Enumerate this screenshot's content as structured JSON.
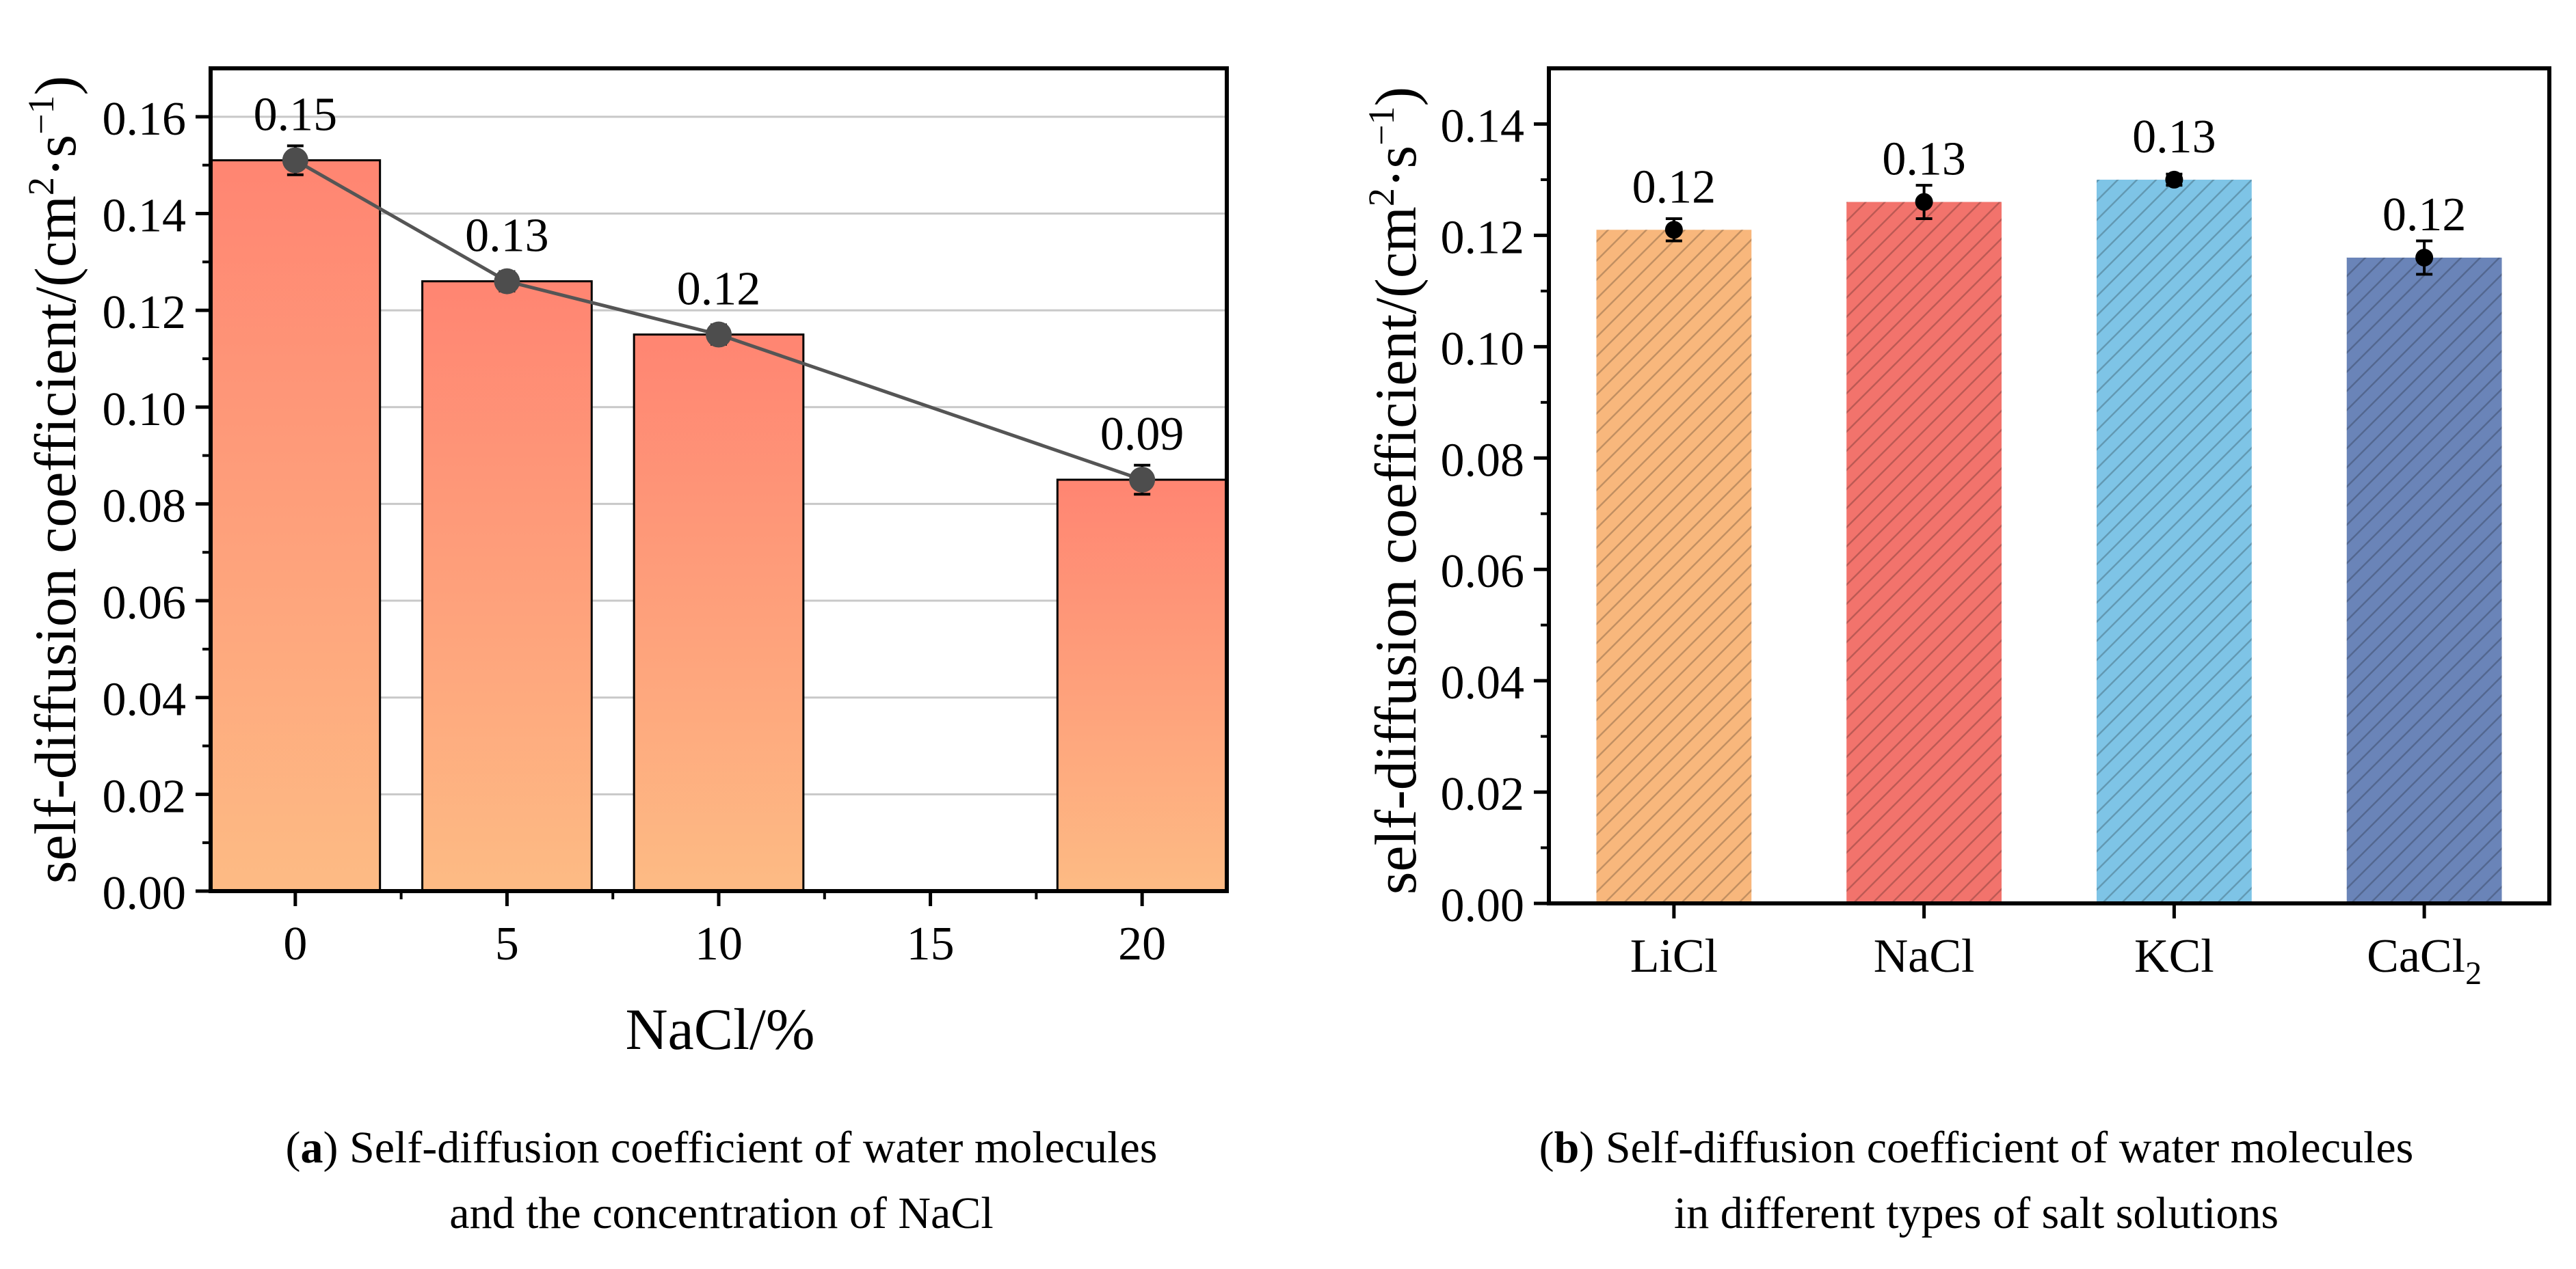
{
  "chart_data": [
    {
      "type": "bar",
      "panel": "a",
      "categories": [
        "0",
        "5",
        "10",
        "15",
        "20"
      ],
      "x": [
        0,
        5,
        10,
        15,
        20
      ],
      "values": [
        0.151,
        0.126,
        0.115,
        null,
        0.085
      ],
      "errors": [
        0.003,
        0.002,
        0.002,
        null,
        0.003
      ],
      "data_labels": [
        "0.15",
        "0.13",
        "0.12",
        "",
        "0.09"
      ],
      "overlay_line": true,
      "ylabel": "self-diffusion coefficient/(cm²·s⁻¹)",
      "ylabel_main": "self-diffusion coefficient/(cm",
      "ylabel_sup1": "2",
      "ylabel_mid": "·s",
      "ylabel_sup2": "−1",
      "ylabel_end": ")",
      "xlabel": "NaCl/%",
      "ylim": [
        0,
        0.17
      ],
      "yticks": [
        "0.00",
        "0.02",
        "0.04",
        "0.06",
        "0.08",
        "0.10",
        "0.12",
        "0.14",
        "0.16"
      ],
      "grid": true,
      "colors": {
        "top": "#ff8572",
        "bottom": "#fdbb84",
        "line": "#555555",
        "marker": "#4d4d4d"
      },
      "caption_letter": "a",
      "caption_line1": " Self-diffusion coefficient of water molecules",
      "caption_line2": "and the concentration of NaCl"
    },
    {
      "type": "bar",
      "panel": "b",
      "categories": [
        "LiCl",
        "NaCl",
        "KCl",
        "CaCl2"
      ],
      "category_labels": [
        {
          "main": "LiCl",
          "sub": ""
        },
        {
          "main": "NaCl",
          "sub": ""
        },
        {
          "main": "KCl",
          "sub": ""
        },
        {
          "main": "CaCl",
          "sub": "2"
        }
      ],
      "values": [
        0.121,
        0.126,
        0.13,
        0.116
      ],
      "errors": [
        0.002,
        0.003,
        0.001,
        0.003
      ],
      "data_labels": [
        "0.12",
        "0.13",
        "0.13",
        "0.12"
      ],
      "ylabel": "self-diffusion coefficient/(cm²·s⁻¹)",
      "ylabel_main": "self-diffusion coefficient/(cm",
      "ylabel_sup1": "2",
      "ylabel_mid": "·s",
      "ylabel_sup2": "−1",
      "ylabel_end": ")",
      "xlabel": "",
      "ylim": [
        0,
        0.15
      ],
      "yticks": [
        "0.00",
        "0.02",
        "0.04",
        "0.06",
        "0.08",
        "0.10",
        "0.12",
        "0.14"
      ],
      "grid": false,
      "hatch": "diagonal",
      "colors": [
        "#f8b77c",
        "#f2736c",
        "#7ec4e6",
        "#6a84b8"
      ],
      "caption_letter": "b",
      "caption_line1": " Self-diffusion coefficient of water molecules",
      "caption_line2": "in different types of salt solutions"
    }
  ]
}
